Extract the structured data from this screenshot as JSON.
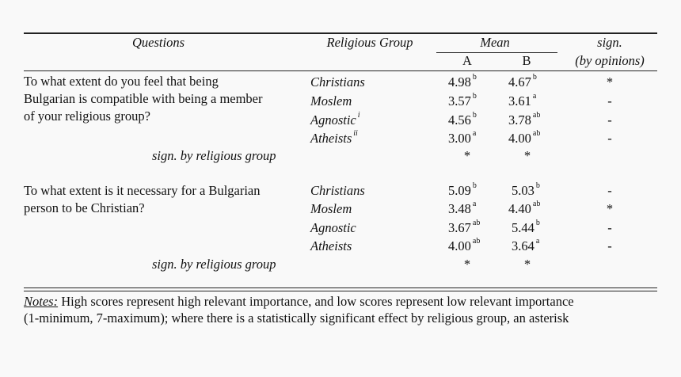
{
  "header": {
    "questions": "Questions",
    "group": "Religious Group",
    "mean": "Mean",
    "col_a": "A",
    "col_b": "B",
    "sign_1": "sign.",
    "sign_2": "(by opinions)"
  },
  "blocks": [
    {
      "question_lines": [
        "To what extent do you feel that being",
        "Bulgarian is compatible with being a member",
        "of your religious group?"
      ],
      "rows": [
        {
          "group": "Christians",
          "group_sup": "",
          "a": "4.98",
          "a_sup": "b",
          "b": "4.67",
          "b_sup": "b",
          "sign": "*"
        },
        {
          "group": "Moslem",
          "group_sup": "",
          "a": "3.57",
          "a_sup": "b",
          "b": "3.61",
          "b_sup": "a",
          "sign": "-"
        },
        {
          "group": "Agnostic",
          "group_sup": "i",
          "a": "4.56",
          "a_sup": "b",
          "b": "3.78",
          "b_sup": "ab",
          "sign": "-"
        },
        {
          "group": "Atheists",
          "group_sup": "ii",
          "a": "3.00",
          "a_sup": "a",
          "b": "4.00",
          "b_sup": "ab",
          "sign": "-"
        }
      ],
      "sign_label": "sign. by religious group",
      "sign_a": "*",
      "sign_b": "*"
    },
    {
      "question_lines": [
        "To what extent is it necessary for a Bulgarian",
        "person to be Christian?"
      ],
      "rows": [
        {
          "group": "Christians",
          "group_sup": "",
          "a": "5.09",
          "a_sup": "b",
          "b": "5.03",
          "b_sup": "b",
          "sign": "-"
        },
        {
          "group": "Moslem",
          "group_sup": "",
          "a": "3.48",
          "a_sup": "a",
          "b": "4.40",
          "b_sup": "ab",
          "sign": "*"
        },
        {
          "group": "Agnostic",
          "group_sup": "",
          "a": "3.67",
          "a_sup": "ab",
          "b": "5.44",
          "b_sup": "b",
          "sign": "-"
        },
        {
          "group": "Atheists",
          "group_sup": "",
          "a": "4.00",
          "a_sup": "ab",
          "b": "3.64",
          "b_sup": "a",
          "sign": "-"
        }
      ],
      "sign_label": "sign. by religious group",
      "sign_a": "*",
      "sign_b": "*"
    }
  ],
  "notes": {
    "label": "Notes:",
    "line1": " High scores represent high relevant importance, and low scores represent low relevant importance",
    "line2": "(1-minimum, 7-maximum); where there is a statistically significant effect by religious group, an asterisk"
  }
}
